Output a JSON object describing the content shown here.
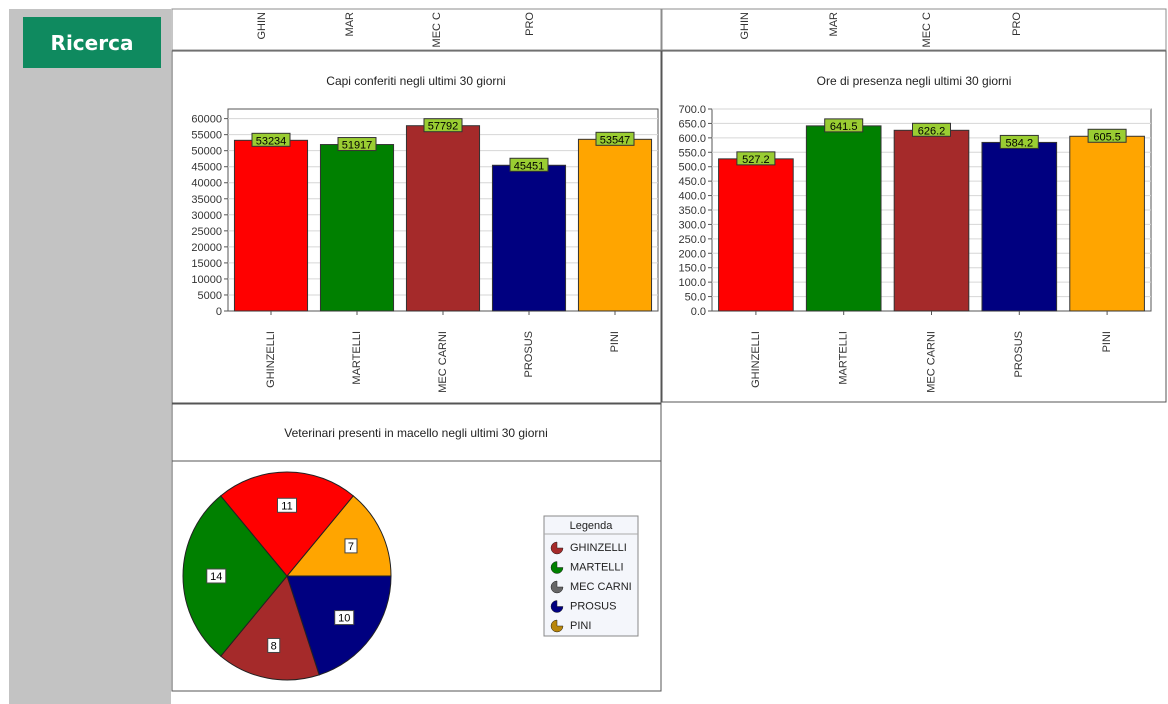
{
  "sidebar": {
    "search_label": "Ricerca"
  },
  "top_strip": {
    "left_labels": [
      "GHIN",
      "MAR",
      "MEC C",
      "PRO"
    ],
    "right_labels": [
      "GHIN",
      "MAR",
      "MEC C",
      "PRO"
    ]
  },
  "chart_data": [
    {
      "type": "bar",
      "title": "Capi conferiti negli ultimi 30 giorni",
      "categories": [
        "GHINZELLI",
        "MARTELLI",
        "MEC CARNI",
        "PROSUS",
        "PINI"
      ],
      "values": [
        53234,
        51917,
        57792,
        45451,
        53547
      ],
      "value_labels": [
        "53234",
        "51917",
        "57792",
        "45451",
        "53547"
      ],
      "colors": [
        "#ff0000",
        "#008000",
        "#a52a2a",
        "#000080",
        "#ffa500"
      ],
      "ylim": [
        0,
        63000
      ],
      "yticks": [
        0,
        5000,
        10000,
        15000,
        20000,
        25000,
        30000,
        35000,
        40000,
        45000,
        50000,
        55000,
        60000
      ],
      "ytick_labels": [
        "0",
        "5000",
        "10000",
        "15000",
        "20000",
        "25000",
        "30000",
        "35000",
        "40000",
        "45000",
        "50000",
        "55000",
        "60000"
      ],
      "grid": true
    },
    {
      "type": "bar",
      "title": "Ore di presenza negli ultimi 30 giorni",
      "categories": [
        "GHINZELLI",
        "MARTELLI",
        "MEC CARNI",
        "PROSUS",
        "PINI"
      ],
      "values": [
        527.2,
        641.5,
        626.2,
        584.2,
        605.5
      ],
      "value_labels": [
        "527.2",
        "641.5",
        "626.2",
        "584.2",
        "605.5"
      ],
      "colors": [
        "#ff0000",
        "#008000",
        "#a52a2a",
        "#000080",
        "#ffa500"
      ],
      "ylim": [
        0,
        700
      ],
      "yticks": [
        0,
        50,
        100,
        150,
        200,
        250,
        300,
        350,
        400,
        450,
        500,
        550,
        600,
        650,
        700
      ],
      "ytick_labels": [
        "0.0",
        "50.0",
        "100.0",
        "150.0",
        "200.0",
        "250.0",
        "300.0",
        "350.0",
        "400.0",
        "450.0",
        "500.0",
        "550.0",
        "600.0",
        "650.0",
        "700.0"
      ],
      "grid": true
    },
    {
      "type": "pie",
      "title": "Veterinari presenti in macello negli ultimi 30 giorni",
      "legend_title": "Legenda",
      "legend_position": "right",
      "slices": [
        {
          "label": "PINI",
          "value": 7,
          "color": "#ffa500",
          "legend_icon_color": "#b8860b"
        },
        {
          "label": "PROSUS",
          "value": 10,
          "color": "#000080",
          "legend_icon_color": "#000080"
        },
        {
          "label": "GHINZELLI",
          "value": 8,
          "color": "#a52a2a",
          "legend_icon_color": "#a52a2a"
        },
        {
          "label": "MARTELLI",
          "value": 14,
          "color": "#008000",
          "legend_icon_color": "#008000"
        },
        {
          "label": "MEC CARNI",
          "value": 11,
          "color": "#ff0000",
          "legend_icon_color": "#666666"
        }
      ],
      "legend_order": [
        "GHINZELLI",
        "MARTELLI",
        "MEC CARNI",
        "PROSUS",
        "PINI"
      ]
    }
  ]
}
